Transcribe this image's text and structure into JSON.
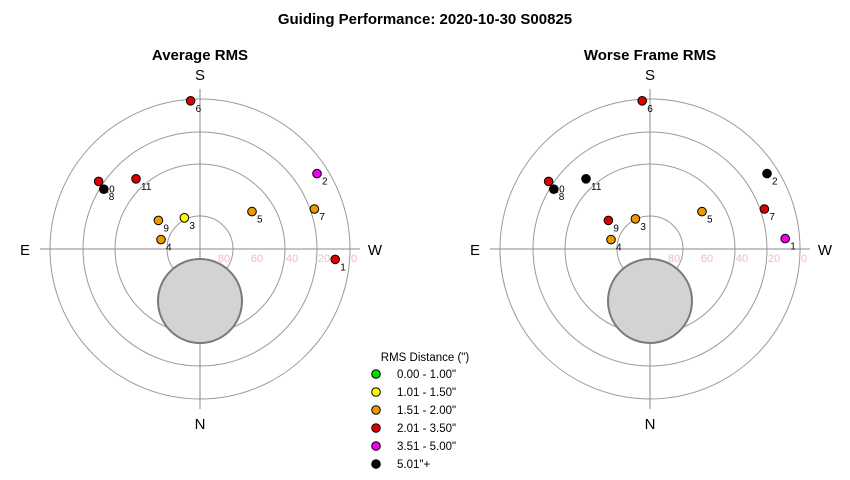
{
  "chart_data": {
    "type": "scatter",
    "subtype": "polar-sky",
    "title": "Guiding Performance: 2020-10-30 S00825",
    "axis": {
      "directions": {
        "top": "S",
        "bottom": "N",
        "left": "E",
        "right": "W"
      },
      "radial_ticks": [
        "80",
        "60",
        "40",
        "20",
        "0"
      ],
      "altitude_rings": [
        80,
        60,
        40,
        20,
        0
      ]
    },
    "legend": {
      "title": "RMS Distance (\")",
      "placement": "bottom-center",
      "items": [
        {
          "label": "0.00 - 1.00\"",
          "color": "#00dd00"
        },
        {
          "label": "1.01 - 1.50\"",
          "color": "#ffff00"
        },
        {
          "label": "1.51 - 2.00\"",
          "color": "#ee9900"
        },
        {
          "label": "2.01 - 3.50\"",
          "color": "#dd0000"
        },
        {
          "label": "3.51 - 5.00\"",
          "color": "#ee00ee"
        },
        {
          "label": "5.01\"+",
          "color": "#000000"
        }
      ]
    },
    "panels": [
      {
        "subtitle": "Average RMS",
        "points": [
          {
            "label": "1",
            "x": 26,
            "y": -2,
            "cat": 3
          },
          {
            "label": "2",
            "x": 22.5,
            "y": 14.5,
            "cat": 4
          },
          {
            "label": "3",
            "x": -3,
            "y": 6,
            "cat": 1
          },
          {
            "label": "4",
            "x": -7.5,
            "y": 1.8,
            "cat": 2
          },
          {
            "label": "5",
            "x": 10,
            "y": 7.2,
            "cat": 2
          },
          {
            "label": "6",
            "x": -1.8,
            "y": 28.5,
            "cat": 3
          },
          {
            "label": "7",
            "x": 22,
            "y": 7.7,
            "cat": 2
          },
          {
            "label": "8",
            "x": -18.5,
            "y": 11.5,
            "cat": 5
          },
          {
            "label": "9",
            "x": -8,
            "y": 5.5,
            "cat": 2
          },
          {
            "label": "10",
            "x": -19.5,
            "y": 13,
            "cat": 3
          },
          {
            "label": "11",
            "x": -12.3,
            "y": 13.5,
            "cat": 3
          }
        ]
      },
      {
        "subtitle": "Worse Frame RMS",
        "points": [
          {
            "label": "1",
            "x": 26,
            "y": 2,
            "cat": 4
          },
          {
            "label": "2",
            "x": 22.5,
            "y": 14.5,
            "cat": 5
          },
          {
            "label": "3",
            "x": -2.8,
            "y": 5.8,
            "cat": 2
          },
          {
            "label": "4",
            "x": -7.5,
            "y": 1.8,
            "cat": 2
          },
          {
            "label": "5",
            "x": 10,
            "y": 7.2,
            "cat": 2
          },
          {
            "label": "6",
            "x": -1.5,
            "y": 28.5,
            "cat": 3
          },
          {
            "label": "7",
            "x": 22,
            "y": 7.7,
            "cat": 3
          },
          {
            "label": "8",
            "x": -18.5,
            "y": 11.5,
            "cat": 5
          },
          {
            "label": "9",
            "x": -8,
            "y": 5.5,
            "cat": 3
          },
          {
            "label": "10",
            "x": -19.5,
            "y": 13,
            "cat": 3
          },
          {
            "label": "11",
            "x": -12.3,
            "y": 13.5,
            "cat": 5
          }
        ]
      }
    ]
  }
}
